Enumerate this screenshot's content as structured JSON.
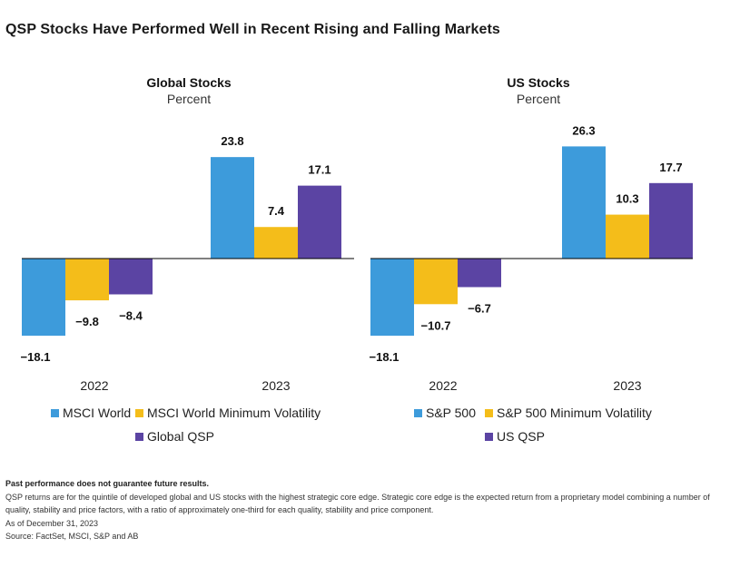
{
  "title": "QSP Stocks Have Performed Well in Recent Rising and Falling Markets",
  "colors": {
    "series1": "#3D9BDB",
    "series2": "#F4BD1A",
    "series3": "#5B44A3",
    "axis": "#000000"
  },
  "chart_data": [
    {
      "type": "bar",
      "title": "Global Stocks",
      "subtitle": "Percent",
      "categories": [
        "2022",
        "2023"
      ],
      "series": [
        {
          "name": "MSCI World",
          "values": [
            -18.1,
            23.8
          ],
          "labels": [
            "−18.1",
            "23.8"
          ]
        },
        {
          "name": "MSCI World Minimum Volatility",
          "values": [
            -9.8,
            7.4
          ],
          "labels": [
            "−9.8",
            "7.4"
          ]
        },
        {
          "name": "Global QSP",
          "values": [
            -8.4,
            17.1
          ],
          "labels": [
            "−8.4",
            "17.1"
          ]
        }
      ]
    },
    {
      "type": "bar",
      "title": "US Stocks",
      "subtitle": "Percent",
      "categories": [
        "2022",
        "2023"
      ],
      "series": [
        {
          "name": "S&P 500",
          "values": [
            -18.1,
            26.3
          ],
          "labels": [
            "−18.1",
            "26.3"
          ]
        },
        {
          "name": "S&P 500 Minimum Volatility",
          "values": [
            -10.7,
            10.3
          ],
          "labels": [
            "−10.7",
            "10.3"
          ]
        },
        {
          "name": "US QSP",
          "values": [
            -6.7,
            17.7
          ],
          "labels": [
            "−6.7",
            "17.7"
          ]
        }
      ]
    }
  ],
  "footnotes": {
    "disclaimer": "Past performance does not guarantee future results.",
    "description": "QSP returns are for the quintile of developed global and US stocks with the highest strategic core edge. Strategic core edge is the expected return from a proprietary model combining a number of quality, stability and price factors, with a ratio of approximately one-third for each quality, stability and price component.",
    "as_of": "As of December 31, 2023",
    "source": "Source: FactSet, MSCI, S&P and AB"
  }
}
